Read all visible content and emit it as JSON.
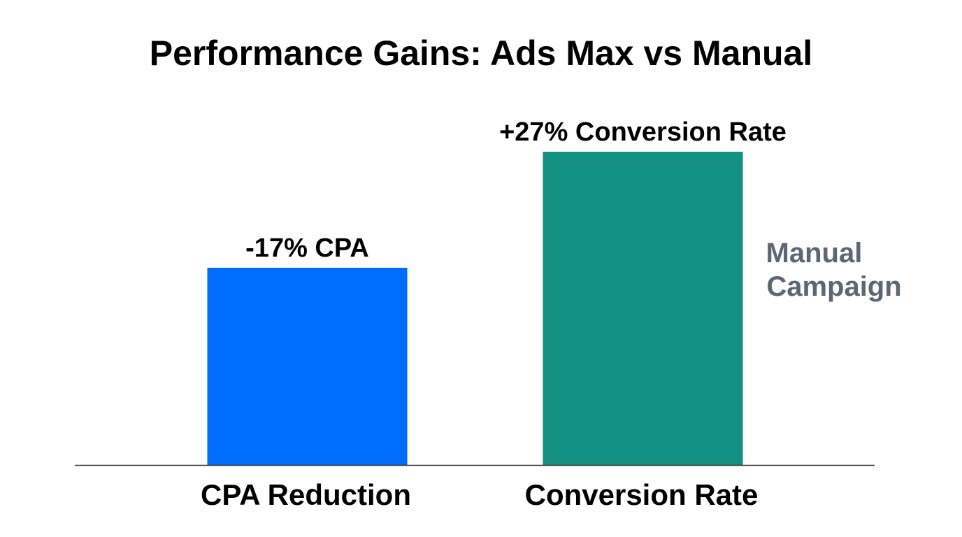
{
  "chart_data": {
    "type": "bar",
    "title": "Performance Gains: Ads Max vs Manual",
    "categories": [
      "CPA Reduction",
      "Conversion Rate"
    ],
    "values": [
      17,
      27
    ],
    "data_labels": [
      "-17% CPA",
      "+27% Conversion Rate"
    ],
    "colors": [
      "#006dff",
      "#149183"
    ],
    "annotation": "Manual Campaign",
    "annotation_color": "#5f6673",
    "ylim": [
      0,
      27
    ],
    "grid": false,
    "xlabel": "",
    "ylabel": ""
  }
}
